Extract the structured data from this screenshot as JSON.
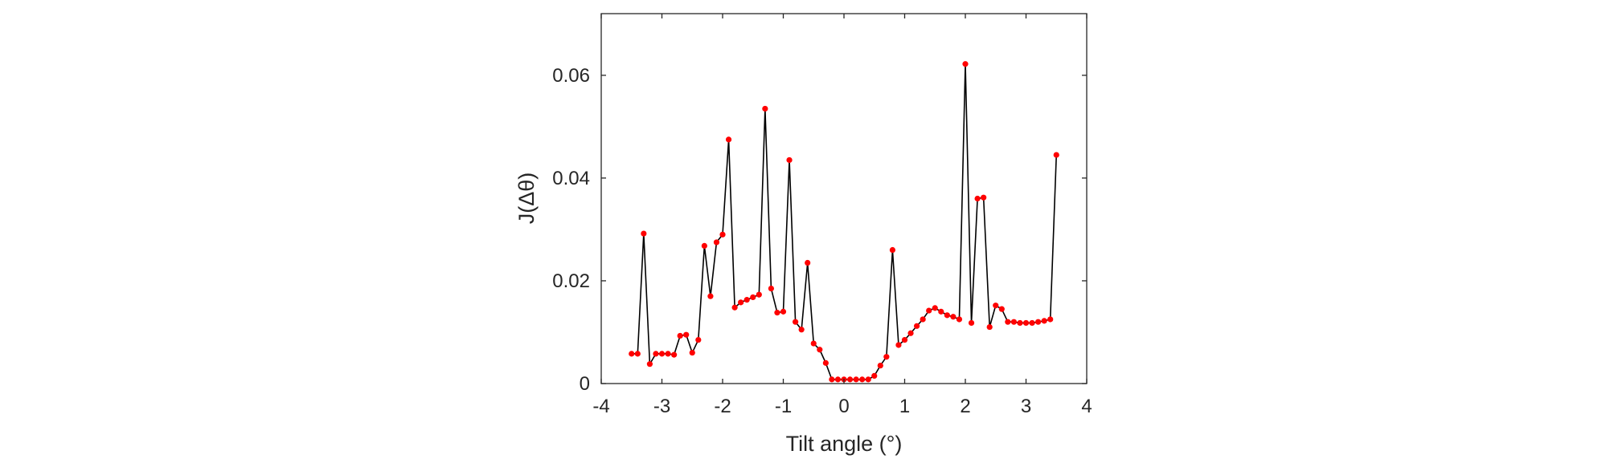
{
  "chart_data": {
    "type": "line",
    "title": "",
    "xlabel": "Tilt angle (°)",
    "ylabel": "J(Δθ)",
    "xlim": [
      -4,
      4
    ],
    "ylim": [
      0,
      0.072
    ],
    "xticks": [
      -4,
      -3,
      -2,
      -1,
      0,
      1,
      2,
      3,
      4
    ],
    "xtick_labels": [
      "-4",
      "-3",
      "-2",
      "-1",
      "0",
      "1",
      "2",
      "3",
      "4"
    ],
    "yticks": [
      0,
      0.02,
      0.04,
      0.06
    ],
    "ytick_labels": [
      "0",
      "0.02",
      "0.04",
      "0.06"
    ],
    "grid": false,
    "box": true,
    "colors": {
      "line": "#000000",
      "marker": "#ff0000",
      "axis": "#262626",
      "background": "#ffffff"
    },
    "series": [
      {
        "x": [
          -3.5,
          -3.4,
          -3.3,
          -3.2,
          -3.1,
          -3.0,
          -2.9,
          -2.8,
          -2.7,
          -2.6,
          -2.5,
          -2.4,
          -2.3,
          -2.2,
          -2.1,
          -2.0,
          -1.9,
          -1.8,
          -1.7,
          -1.6,
          -1.5,
          -1.4,
          -1.3,
          -1.2,
          -1.1,
          -1.0,
          -0.9,
          -0.8,
          -0.7,
          -0.6,
          -0.5,
          -0.4,
          -0.3,
          -0.2,
          -0.1,
          0.0,
          0.1,
          0.2,
          0.3,
          0.4,
          0.5,
          0.6,
          0.7,
          0.8,
          0.9,
          1.0,
          1.1,
          1.2,
          1.3,
          1.4,
          1.5,
          1.6,
          1.7,
          1.8,
          1.9,
          2.0,
          2.1,
          2.2,
          2.3,
          2.4,
          2.5,
          2.6,
          2.7,
          2.8,
          2.9,
          3.0,
          3.1,
          3.2,
          3.3,
          3.4,
          3.5
        ],
        "y": [
          0.0058,
          0.0058,
          0.0292,
          0.0038,
          0.0058,
          0.0058,
          0.0058,
          0.0056,
          0.0093,
          0.0095,
          0.006,
          0.0085,
          0.0268,
          0.017,
          0.0275,
          0.029,
          0.0475,
          0.0148,
          0.0158,
          0.0163,
          0.0168,
          0.0173,
          0.0535,
          0.0185,
          0.0138,
          0.014,
          0.0435,
          0.012,
          0.0105,
          0.0235,
          0.0078,
          0.0066,
          0.004,
          0.0008,
          0.0008,
          0.0008,
          0.0008,
          0.0008,
          0.0008,
          0.0008,
          0.0015,
          0.0035,
          0.0052,
          0.026,
          0.0075,
          0.0085,
          0.0098,
          0.0112,
          0.0125,
          0.0142,
          0.0147,
          0.014,
          0.0133,
          0.013,
          0.0125,
          0.0622,
          0.0118,
          0.036,
          0.0362,
          0.011,
          0.0152,
          0.0145,
          0.012,
          0.012,
          0.0118,
          0.0118,
          0.0118,
          0.012,
          0.0122,
          0.0125,
          0.0445
        ]
      }
    ]
  }
}
